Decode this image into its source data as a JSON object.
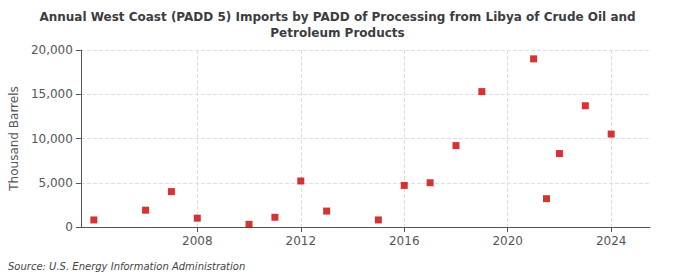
{
  "chart_data": {
    "type": "scatter",
    "title": "Annual West Coast (PADD 5) Imports by PADD of Processing from Libya of Crude Oil and\nPetroleum Products",
    "ylabel": "Thousand Barrels",
    "source": "Source: U.S. Energy Information Administration",
    "x": [
      2004,
      2006,
      2007,
      2008,
      2010,
      2011,
      2012,
      2013,
      2015,
      2016,
      2017,
      2018,
      2019,
      2021,
      2021.5,
      2022,
      2023,
      2024
    ],
    "values": [
      800,
      1900,
      4000,
      1000,
      300,
      1100,
      5200,
      1800,
      800,
      4700,
      5000,
      9200,
      15300,
      19000,
      3200,
      8300,
      13700,
      10500
    ],
    "color": "#cc0000",
    "marker": "square",
    "xlim": [
      2003.5,
      2025.5
    ],
    "ylim": [
      0,
      20000
    ],
    "xticks": [
      2008,
      2012,
      2016,
      2020,
      2024
    ],
    "yticks": [
      0,
      {
        "value": 5000,
        "label": "5,000"
      },
      {
        "value": 10000,
        "label": "10,000"
      },
      {
        "value": 15000,
        "label": "15,000"
      },
      {
        "value": 20000,
        "label": "20,000"
      }
    ],
    "grid": true
  }
}
